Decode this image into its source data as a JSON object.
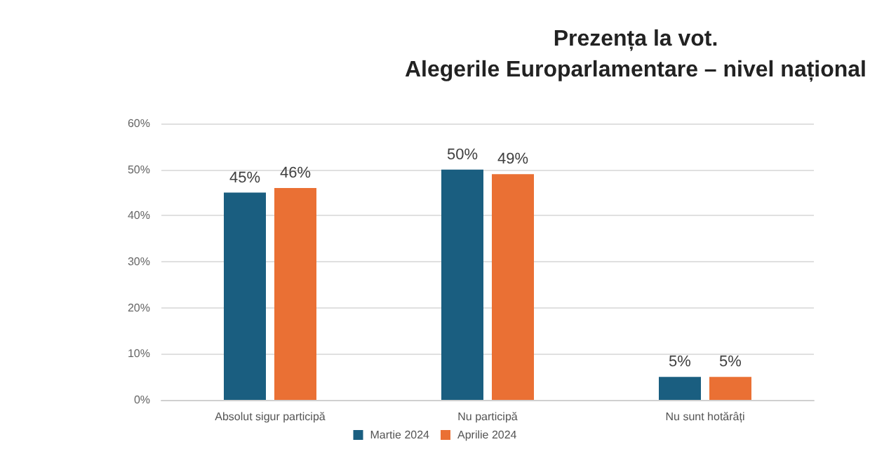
{
  "chart_data": {
    "type": "bar",
    "title": "Prezența la vot.\nAlegerile Europarlamentare – nivel național",
    "categories": [
      "Absolut sigur participă",
      "Nu participă",
      "Nu sunt hotărâți"
    ],
    "series": [
      {
        "name": "Martie 2024",
        "color": "#1a5e80",
        "values": [
          45,
          50,
          5
        ],
        "value_labels": [
          "45%",
          "50%",
          "5%"
        ]
      },
      {
        "name": "Aprilie 2024",
        "color": "#ea7034",
        "values": [
          46,
          49,
          5
        ],
        "value_labels": [
          "46%",
          "49%",
          "5%"
        ]
      }
    ],
    "ylim": [
      0,
      60
    ],
    "yticks": [
      {
        "value": 0,
        "label": "0%"
      },
      {
        "value": 10,
        "label": "10%"
      },
      {
        "value": 20,
        "label": "20%"
      },
      {
        "value": 30,
        "label": "30%"
      },
      {
        "value": 40,
        "label": "40%"
      },
      {
        "value": 50,
        "label": "50%"
      },
      {
        "value": 60,
        "label": "60%"
      }
    ],
    "grid": "y",
    "legend": "bottom"
  }
}
